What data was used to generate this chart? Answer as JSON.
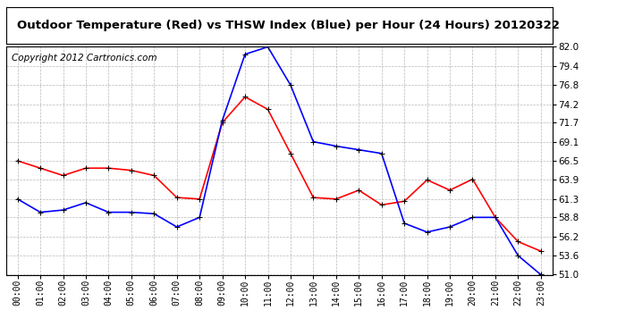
{
  "title": "Outdoor Temperature (Red) vs THSW Index (Blue) per Hour (24 Hours) 20120322",
  "copyright": "Copyright 2012 Cartronics.com",
  "hours": [
    "00:00",
    "01:00",
    "02:00",
    "03:00",
    "04:00",
    "05:00",
    "06:00",
    "07:00",
    "08:00",
    "09:00",
    "10:00",
    "11:00",
    "12:00",
    "13:00",
    "14:00",
    "15:00",
    "16:00",
    "17:00",
    "18:00",
    "19:00",
    "20:00",
    "21:00",
    "22:00",
    "23:00"
  ],
  "red_data": [
    66.5,
    65.5,
    64.5,
    65.5,
    65.5,
    65.2,
    64.5,
    61.5,
    61.3,
    71.7,
    75.2,
    73.5,
    67.5,
    61.5,
    61.3,
    62.5,
    60.5,
    61.0,
    63.9,
    62.5,
    64.0,
    58.8,
    55.5,
    54.2
  ],
  "blue_data": [
    61.3,
    59.5,
    59.8,
    60.8,
    59.5,
    59.5,
    59.3,
    57.5,
    58.8,
    72.0,
    81.0,
    82.0,
    76.8,
    69.1,
    68.5,
    68.0,
    67.5,
    58.0,
    56.8,
    57.5,
    58.8,
    58.8,
    53.6,
    51.0
  ],
  "ylim": [
    51.0,
    82.0
  ],
  "yticks": [
    51.0,
    53.6,
    56.2,
    58.8,
    61.3,
    63.9,
    66.5,
    69.1,
    71.7,
    74.2,
    76.8,
    79.4,
    82.0
  ],
  "red_color": "#ff0000",
  "blue_color": "#0000ff",
  "bg_color": "#ffffff",
  "grid_color": "#b0b0b0",
  "title_fontsize": 9.5,
  "copyright_fontsize": 7.5
}
